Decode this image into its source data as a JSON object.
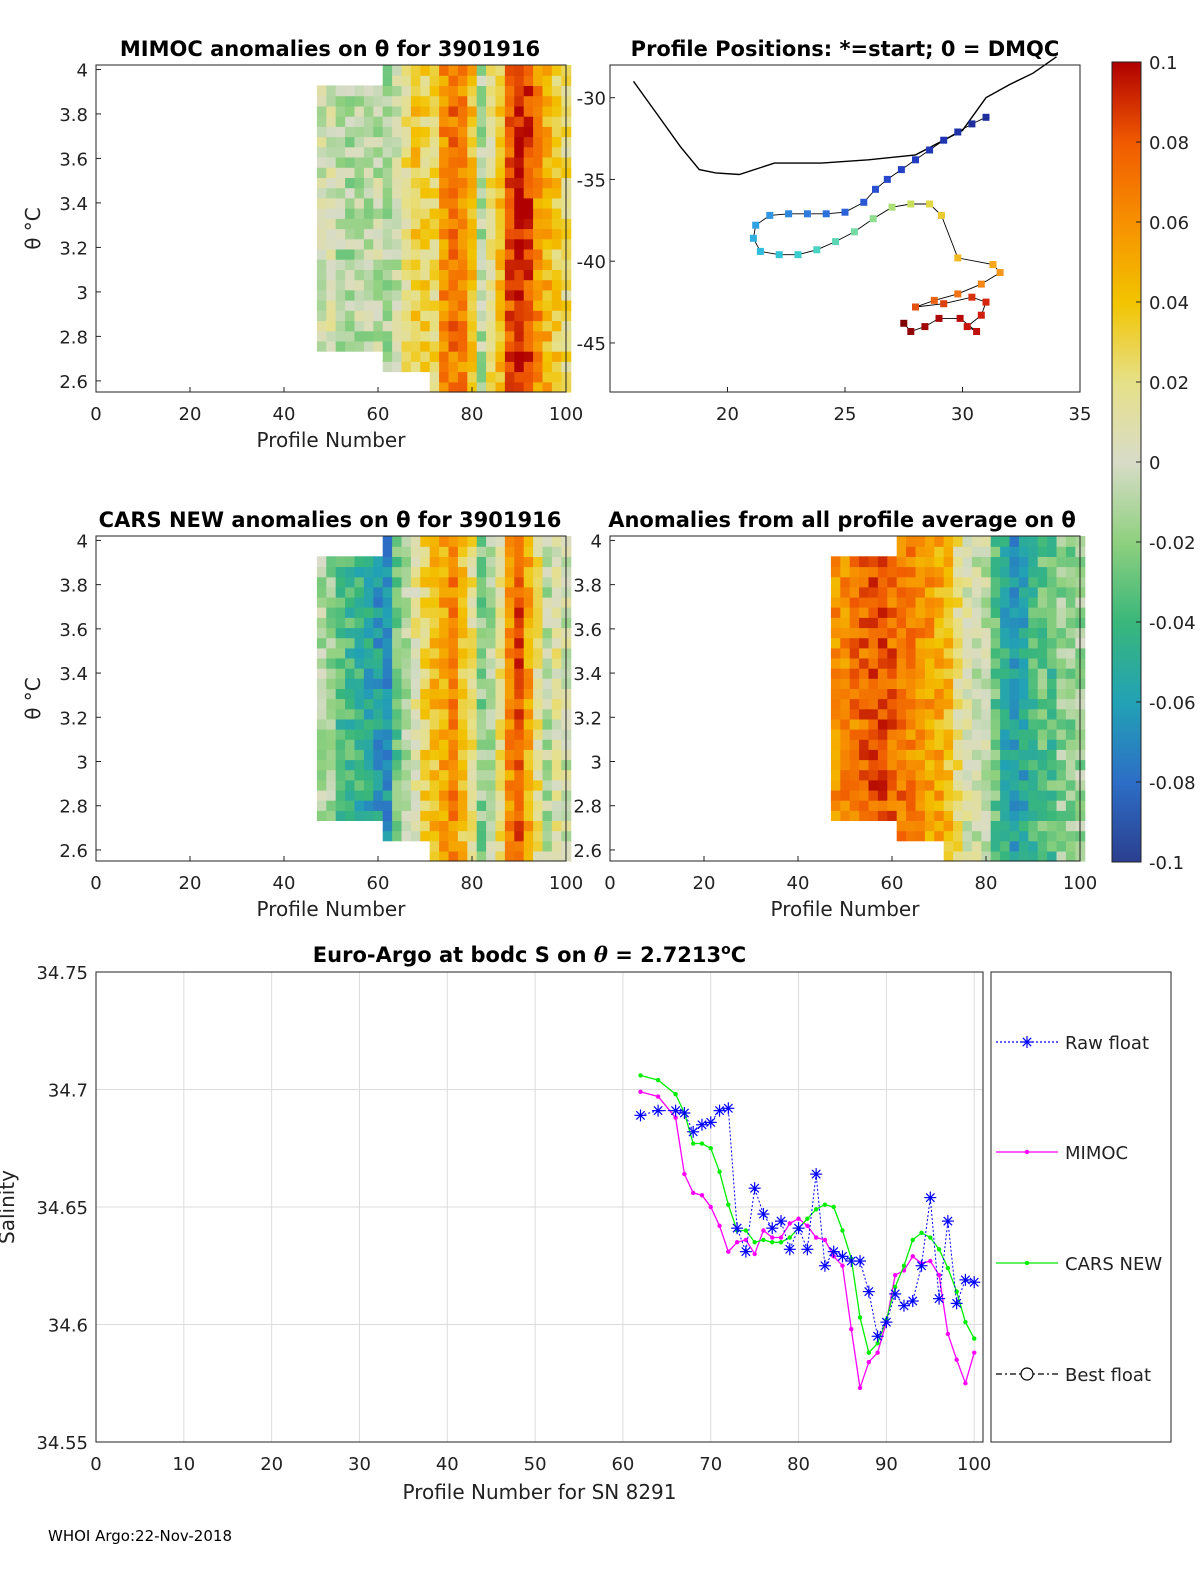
{
  "footer": "WHOI Argo:22-Nov-2018",
  "colors": {
    "raw": "#0000ff",
    "mimoc": "#ff00ff",
    "cars": "#00ee00",
    "best": "#000000",
    "coast": "#000000"
  },
  "colorbar": {
    "ticks": [
      "0.1",
      "0.08",
      "0.06",
      "0.04",
      "0.02",
      "0",
      "-0.02",
      "-0.04",
      "-0.06",
      "-0.08",
      "-0.1"
    ],
    "range": [
      -0.1,
      0.1
    ],
    "stops": [
      "#2b3f8f",
      "#2d6ec6",
      "#22a2b5",
      "#39b77a",
      "#8fd07f",
      "#d8dcc8",
      "#e6e088",
      "#f2c400",
      "#f79000",
      "#f05a00",
      "#b00000"
    ]
  },
  "panels": {
    "mimoc": {
      "title": "MIMOC anomalies on θ  for 3901916",
      "xlabel": "Profile Number",
      "ylabel": "θ °C",
      "xticks": [
        "0",
        "20",
        "40",
        "60",
        "80",
        "100"
      ],
      "yticks": [
        "4",
        "3.8",
        "3.6",
        "3.4",
        "3.2",
        "3",
        "2.8",
        "2.6"
      ],
      "profile_range": [
        47,
        100
      ]
    },
    "positions": {
      "title": "Profile Positions: *=start; 0 = DMQC",
      "xticks": [
        "20",
        "25",
        "30",
        "35"
      ],
      "yticks": [
        "-30",
        "-35",
        "-40",
        "-45"
      ]
    },
    "cars": {
      "title": "CARS NEW anomalies on θ for 3901916",
      "xlabel": "Profile Number",
      "ylabel": "θ °C",
      "xticks": [
        "0",
        "20",
        "40",
        "60",
        "80",
        "100"
      ],
      "yticks": [
        "4",
        "3.8",
        "3.6",
        "3.4",
        "3.2",
        "3",
        "2.8",
        "2.6"
      ]
    },
    "allavg": {
      "title": "Anomalies from all profile average on θ",
      "xlabel": "Profile Number",
      "xticks": [
        "0",
        "20",
        "40",
        "60",
        "80",
        "100"
      ],
      "yticks": [
        "4",
        "3.8",
        "3.6",
        "3.4",
        "3.2",
        "3",
        "2.8",
        "2.6"
      ]
    }
  },
  "chart_data": [
    {
      "type": "heatmap",
      "title": "MIMOC anomalies on θ  for 3901916",
      "xlabel": "Profile Number",
      "ylabel": "θ °C",
      "xlim": [
        0,
        100
      ],
      "ylim": [
        2.55,
        4.02
      ],
      "x_extent": [
        47,
        100
      ],
      "z_range": [
        -0.1,
        0.1
      ],
      "columns": [
        {
          "x": 47,
          "z": 0.0
        },
        {
          "x": 49,
          "z": 0.005
        },
        {
          "x": 51,
          "z": -0.01
        },
        {
          "x": 53,
          "z": -0.012
        },
        {
          "x": 55,
          "z": -0.008
        },
        {
          "x": 57,
          "z": -0.01
        },
        {
          "x": 59,
          "z": -0.006
        },
        {
          "x": 61,
          "z": -0.012
        },
        {
          "x": 63,
          "z": -0.003
        },
        {
          "x": 65,
          "z": 0.02
        },
        {
          "x": 67,
          "z": 0.035
        },
        {
          "x": 69,
          "z": 0.03
        },
        {
          "x": 71,
          "z": 0.025
        },
        {
          "x": 73,
          "z": 0.06
        },
        {
          "x": 75,
          "z": 0.07
        },
        {
          "x": 77,
          "z": 0.065
        },
        {
          "x": 79,
          "z": 0.04
        },
        {
          "x": 81,
          "z": -0.01
        },
        {
          "x": 83,
          "z": 0.02
        },
        {
          "x": 85,
          "z": 0.04
        },
        {
          "x": 87,
          "z": 0.08
        },
        {
          "x": 89,
          "z": 0.095
        },
        {
          "x": 91,
          "z": 0.085
        },
        {
          "x": 93,
          "z": 0.06
        },
        {
          "x": 95,
          "z": 0.045
        },
        {
          "x": 97,
          "z": 0.035
        },
        {
          "x": 99,
          "z": 0.025
        }
      ]
    },
    {
      "type": "line",
      "title": "Profile Positions: *=start; 0 = DMQC",
      "xlim": [
        15,
        35
      ],
      "ylim": [
        -48,
        -28
      ],
      "coast": [
        [
          16,
          -29
        ],
        [
          17,
          -31
        ],
        [
          18,
          -33
        ],
        [
          18.8,
          -34.4
        ],
        [
          19.5,
          -34.6
        ],
        [
          20.5,
          -34.7
        ],
        [
          22,
          -34
        ],
        [
          24,
          -34
        ],
        [
          26,
          -33.8
        ],
        [
          28,
          -33.5
        ],
        [
          30,
          -32
        ],
        [
          31,
          -30
        ],
        [
          32,
          -29.2
        ],
        [
          33,
          -28.5
        ],
        [
          34,
          -27.5
        ]
      ],
      "track": [
        {
          "lon": 31.0,
          "lat": -31.2,
          "c": "#1f2f9c"
        },
        {
          "lon": 30.4,
          "lat": -31.6,
          "c": "#1f2f9c"
        },
        {
          "lon": 29.8,
          "lat": -32.1,
          "c": "#1f32a8"
        },
        {
          "lon": 29.2,
          "lat": -32.6,
          "c": "#2035b2"
        },
        {
          "lon": 28.6,
          "lat": -33.2,
          "c": "#2038b8"
        },
        {
          "lon": 28.0,
          "lat": -33.8,
          "c": "#213cc0"
        },
        {
          "lon": 27.4,
          "lat": -34.4,
          "c": "#2340c6"
        },
        {
          "lon": 26.8,
          "lat": -35.0,
          "c": "#2648cb"
        },
        {
          "lon": 26.3,
          "lat": -35.6,
          "c": "#2850d0"
        },
        {
          "lon": 25.8,
          "lat": -36.4,
          "c": "#2a58d4"
        },
        {
          "lon": 25.0,
          "lat": -37.0,
          "c": "#2c62d8"
        },
        {
          "lon": 24.2,
          "lat": -37.1,
          "c": "#2c6edb"
        },
        {
          "lon": 23.4,
          "lat": -37.1,
          "c": "#2e7ade"
        },
        {
          "lon": 22.6,
          "lat": -37.1,
          "c": "#2f88e0"
        },
        {
          "lon": 21.8,
          "lat": -37.2,
          "c": "#3095e2"
        },
        {
          "lon": 21.2,
          "lat": -37.8,
          "c": "#30a2e2"
        },
        {
          "lon": 21.1,
          "lat": -38.6,
          "c": "#2fb0e0"
        },
        {
          "lon": 21.4,
          "lat": -39.4,
          "c": "#2ebcdd"
        },
        {
          "lon": 22.2,
          "lat": -39.6,
          "c": "#30c4d6"
        },
        {
          "lon": 23.0,
          "lat": -39.6,
          "c": "#3bcccd"
        },
        {
          "lon": 23.8,
          "lat": -39.3,
          "c": "#4ad2c2"
        },
        {
          "lon": 24.6,
          "lat": -38.8,
          "c": "#5cd6b4"
        },
        {
          "lon": 25.4,
          "lat": -38.2,
          "c": "#74dba4"
        },
        {
          "lon": 26.2,
          "lat": -37.4,
          "c": "#8fdd8e"
        },
        {
          "lon": 27.0,
          "lat": -36.7,
          "c": "#abdf77"
        },
        {
          "lon": 27.8,
          "lat": -36.5,
          "c": "#c8df5c"
        },
        {
          "lon": 28.6,
          "lat": -36.5,
          "c": "#e0d743"
        },
        {
          "lon": 29.1,
          "lat": -37.2,
          "c": "#eac931"
        },
        {
          "lon": 29.8,
          "lat": -39.8,
          "c": "#f2b821"
        },
        {
          "lon": 31.3,
          "lat": -40.2,
          "c": "#f6a71b"
        },
        {
          "lon": 31.6,
          "lat": -40.7,
          "c": "#f79618"
        },
        {
          "lon": 30.8,
          "lat": -41.4,
          "c": "#f58516"
        },
        {
          "lon": 29.8,
          "lat": -42.0,
          "c": "#f07414"
        },
        {
          "lon": 28.8,
          "lat": -42.4,
          "c": "#ea6212"
        },
        {
          "lon": 28.0,
          "lat": -42.8,
          "c": "#e35110"
        },
        {
          "lon": 29.2,
          "lat": -42.6,
          "c": "#dc400f"
        },
        {
          "lon": 30.4,
          "lat": -42.2,
          "c": "#d8320e"
        },
        {
          "lon": 31.0,
          "lat": -42.5,
          "c": "#d4260d"
        },
        {
          "lon": 30.8,
          "lat": -43.3,
          "c": "#d01c0c"
        },
        {
          "lon": 30.2,
          "lat": -44.0,
          "c": "#c8140b"
        },
        {
          "lon": 30.6,
          "lat": -44.3,
          "c": "#c0100a"
        },
        {
          "lon": 29.9,
          "lat": -43.5,
          "c": "#b80c09"
        },
        {
          "lon": 29.0,
          "lat": -43.5,
          "c": "#ad0808"
        },
        {
          "lon": 28.4,
          "lat": -44.0,
          "c": "#a00606"
        },
        {
          "lon": 27.8,
          "lat": -44.3,
          "c": "#900404"
        },
        {
          "lon": 27.5,
          "lat": -43.8,
          "c": "#800000"
        }
      ]
    },
    {
      "type": "heatmap",
      "title": "CARS NEW anomalies on θ for 3901916",
      "xlabel": "Profile Number",
      "ylabel": "θ °C",
      "xlim": [
        0,
        100
      ],
      "ylim": [
        2.55,
        4.02
      ],
      "x_extent": [
        47,
        100
      ],
      "z_range": [
        -0.1,
        0.1
      ],
      "columns": [
        {
          "x": 47,
          "z": -0.01
        },
        {
          "x": 49,
          "z": -0.015
        },
        {
          "x": 51,
          "z": -0.035
        },
        {
          "x": 53,
          "z": -0.04
        },
        {
          "x": 55,
          "z": -0.045
        },
        {
          "x": 57,
          "z": -0.055
        },
        {
          "x": 59,
          "z": -0.06
        },
        {
          "x": 61,
          "z": -0.065
        },
        {
          "x": 63,
          "z": -0.03
        },
        {
          "x": 65,
          "z": -0.01
        },
        {
          "x": 67,
          "z": 0.01
        },
        {
          "x": 69,
          "z": 0.03
        },
        {
          "x": 71,
          "z": 0.04
        },
        {
          "x": 73,
          "z": 0.05
        },
        {
          "x": 75,
          "z": 0.065
        },
        {
          "x": 77,
          "z": 0.04
        },
        {
          "x": 79,
          "z": 0.02
        },
        {
          "x": 81,
          "z": -0.02
        },
        {
          "x": 83,
          "z": -0.01
        },
        {
          "x": 85,
          "z": 0.02
        },
        {
          "x": 87,
          "z": 0.06
        },
        {
          "x": 89,
          "z": 0.08
        },
        {
          "x": 91,
          "z": 0.05
        },
        {
          "x": 93,
          "z": 0.02
        },
        {
          "x": 95,
          "z": -0.01
        },
        {
          "x": 97,
          "z": 0.01
        },
        {
          "x": 99,
          "z": 0.0
        }
      ]
    },
    {
      "type": "heatmap",
      "title": "Anomalies from all profile average on θ",
      "xlabel": "Profile Number",
      "xlim": [
        0,
        100
      ],
      "ylim": [
        2.55,
        4.02
      ],
      "x_extent": [
        47,
        100
      ],
      "z_range": [
        -0.1,
        0.1
      ],
      "columns": [
        {
          "x": 47,
          "z": 0.06
        },
        {
          "x": 49,
          "z": 0.065
        },
        {
          "x": 51,
          "z": 0.07
        },
        {
          "x": 53,
          "z": 0.075
        },
        {
          "x": 55,
          "z": 0.08
        },
        {
          "x": 57,
          "z": 0.08
        },
        {
          "x": 59,
          "z": 0.075
        },
        {
          "x": 61,
          "z": 0.07
        },
        {
          "x": 63,
          "z": 0.065
        },
        {
          "x": 65,
          "z": 0.06
        },
        {
          "x": 67,
          "z": 0.055
        },
        {
          "x": 69,
          "z": 0.05
        },
        {
          "x": 71,
          "z": 0.04
        },
        {
          "x": 73,
          "z": 0.02
        },
        {
          "x": 75,
          "z": 0.005
        },
        {
          "x": 77,
          "z": 0.0
        },
        {
          "x": 79,
          "z": -0.005
        },
        {
          "x": 81,
          "z": -0.03
        },
        {
          "x": 83,
          "z": -0.05
        },
        {
          "x": 85,
          "z": -0.06
        },
        {
          "x": 87,
          "z": -0.055
        },
        {
          "x": 89,
          "z": -0.04
        },
        {
          "x": 91,
          "z": -0.03
        },
        {
          "x": 93,
          "z": -0.035
        },
        {
          "x": 95,
          "z": -0.02
        },
        {
          "x": 97,
          "z": -0.02
        },
        {
          "x": 99,
          "z": -0.015
        }
      ]
    },
    {
      "type": "line",
      "title": "Euro-Argo at bodc S on θ = 2.7213°C",
      "title_parts": {
        "pre": "Euro-Argo at bodc S on ",
        "theta": "θ",
        "mid": " = 2.7213",
        "sup": "o",
        "post": "C"
      },
      "xlabel": "Profile Number for SN 8291",
      "ylabel": "Salinity",
      "xlim": [
        0,
        101
      ],
      "ylim": [
        34.55,
        34.75
      ],
      "xticks": [
        "0",
        "10",
        "20",
        "30",
        "40",
        "50",
        "60",
        "70",
        "80",
        "90",
        "100"
      ],
      "yticks": [
        "34.75",
        "34.7",
        "34.65",
        "34.6",
        "34.55"
      ],
      "grid": true,
      "legend": [
        "Raw float",
        "MIMOC",
        "CARS NEW",
        "Best float"
      ],
      "legend_position": "right",
      "series": [
        {
          "name": "Raw float",
          "marker": "asterisk",
          "style": "dotted",
          "x": [
            62,
            64,
            66,
            67,
            68,
            69,
            70,
            71,
            72,
            73,
            74,
            75,
            76,
            77,
            78,
            79,
            80,
            81,
            82,
            83,
            84,
            85,
            86,
            87,
            88,
            89,
            90,
            91,
            92,
            93,
            94,
            95,
            96,
            97,
            98,
            99,
            100
          ],
          "y": [
            34.689,
            34.691,
            34.691,
            34.69,
            34.682,
            34.685,
            34.686,
            34.691,
            34.692,
            34.641,
            34.631,
            34.658,
            34.647,
            34.641,
            34.644,
            34.632,
            34.641,
            34.632,
            34.664,
            34.625,
            34.631,
            34.629,
            34.627,
            34.627,
            34.614,
            34.595,
            34.601,
            34.613,
            34.608,
            34.61,
            34.625,
            34.654,
            34.611,
            34.644,
            34.609,
            34.619,
            34.618
          ]
        },
        {
          "name": "MIMOC",
          "marker": "dot",
          "style": "solid",
          "x": [
            62,
            64,
            66,
            67,
            68,
            69,
            70,
            71,
            72,
            73,
            74,
            75,
            76,
            77,
            78,
            79,
            80,
            81,
            82,
            83,
            84,
            85,
            86,
            87,
            88,
            89,
            90,
            91,
            92,
            93,
            94,
            95,
            96,
            97,
            98,
            99,
            100
          ],
          "y": [
            34.699,
            34.697,
            34.688,
            34.664,
            34.656,
            34.655,
            34.65,
            34.642,
            34.631,
            34.635,
            34.636,
            34.63,
            34.64,
            34.637,
            34.637,
            34.643,
            34.645,
            34.642,
            34.637,
            34.636,
            34.629,
            34.625,
            34.598,
            34.573,
            34.584,
            34.588,
            34.601,
            34.621,
            34.623,
            34.629,
            34.626,
            34.627,
            34.621,
            34.596,
            34.585,
            34.575,
            34.588
          ]
        },
        {
          "name": "CARS NEW",
          "marker": "dot",
          "style": "solid",
          "x": [
            62,
            64,
            66,
            67,
            68,
            69,
            70,
            71,
            72,
            73,
            74,
            75,
            76,
            77,
            78,
            79,
            80,
            81,
            82,
            83,
            84,
            85,
            86,
            87,
            88,
            89,
            90,
            91,
            92,
            93,
            94,
            95,
            96,
            97,
            98,
            99,
            100
          ],
          "y": [
            34.706,
            34.704,
            34.698,
            34.69,
            34.677,
            34.677,
            34.675,
            34.665,
            34.651,
            34.64,
            34.64,
            34.635,
            34.636,
            34.635,
            34.635,
            34.637,
            34.641,
            34.645,
            34.649,
            34.651,
            34.65,
            34.64,
            34.628,
            34.603,
            34.588,
            34.592,
            34.602,
            34.616,
            34.625,
            34.636,
            34.639,
            34.637,
            34.632,
            34.624,
            34.614,
            34.601,
            34.594
          ]
        },
        {
          "name": "Best float",
          "marker": "circle",
          "style": "dashdot",
          "x": [],
          "y": []
        }
      ]
    }
  ]
}
